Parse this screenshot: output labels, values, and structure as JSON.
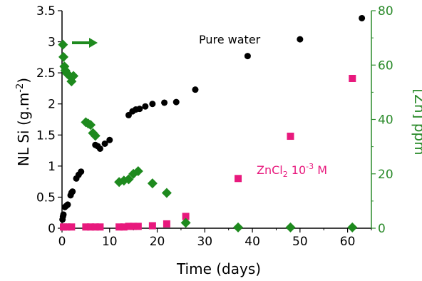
{
  "chart_data": {
    "type": "scatter",
    "xlabel": "Time (days)",
    "ylabel": {
      "base": "NL Si (g.m",
      "sup": "-2",
      "tail": ")"
    },
    "y2label": "[Zn] ppm",
    "xlim": [
      0,
      65
    ],
    "ylim": [
      0,
      3.5
    ],
    "y2lim": [
      0,
      80
    ],
    "xticks": [
      0,
      10,
      20,
      30,
      40,
      50,
      60
    ],
    "yticks": [
      0,
      0.5,
      1,
      1.5,
      2,
      2.5,
      3,
      3.5
    ],
    "y2ticks": [
      0,
      20,
      40,
      60,
      80
    ],
    "colors": {
      "pure_water": "#000000",
      "zncl2": "#e8197d",
      "zn": "#1e8a1e",
      "right_axis": "#2a8a2a"
    },
    "annotations": {
      "pure_water": "Pure water",
      "zncl2": {
        "base": "ZnCl",
        "sub": "2",
        "tail": " 10",
        "sup": "-3",
        "end": " M"
      }
    },
    "series": [
      {
        "key": "pure_water",
        "axis": "left",
        "marker": "circle",
        "x": [
          0.1,
          0.2,
          0.3,
          0.6,
          0.9,
          1.2,
          1.8,
          2.0,
          2.2,
          3.0,
          3.5,
          4.0,
          7.0,
          7.5,
          8.0,
          9.0,
          10.0,
          14.0,
          14.8,
          15.5,
          16.3,
          17.5,
          19.0,
          21.5,
          24.0,
          28.0,
          39.0,
          50.0,
          63.0
        ],
        "y": [
          0.14,
          0.19,
          0.22,
          0.34,
          0.36,
          0.38,
          0.53,
          0.57,
          0.59,
          0.8,
          0.86,
          0.91,
          1.34,
          1.32,
          1.28,
          1.36,
          1.42,
          1.82,
          1.88,
          1.91,
          1.92,
          1.96,
          2.0,
          2.02,
          2.03,
          2.23,
          2.77,
          3.04,
          3.38
        ]
      },
      {
        "key": "zncl2",
        "axis": "left",
        "marker": "square",
        "x": [
          0.3,
          1.0,
          2.0,
          5.0,
          6.0,
          7.0,
          8.0,
          12.0,
          13.0,
          14.0,
          15.0,
          16.0,
          19.0,
          22.0,
          26.0,
          37.0,
          48.0,
          61.0
        ],
        "y": [
          0.02,
          0.02,
          0.02,
          0.02,
          0.02,
          0.02,
          0.02,
          0.02,
          0.02,
          0.03,
          0.03,
          0.03,
          0.04,
          0.07,
          0.19,
          0.8,
          1.48,
          2.41
        ]
      },
      {
        "key": "zn",
        "axis": "right",
        "marker": "diamond",
        "x": [
          0.2,
          0.3,
          0.5,
          0.7,
          1.0,
          1.3,
          1.6,
          2.0,
          2.4,
          5.0,
          5.5,
          6.0,
          6.5,
          7.0,
          12.0,
          13.0,
          14.0,
          15.0,
          16.0,
          19.0,
          22.0,
          26.0,
          37.0,
          48.0,
          61.0
        ],
        "y": [
          67.5,
          63.0,
          59.5,
          58.0,
          57.0,
          56.5,
          56.0,
          54.0,
          56.0,
          39.0,
          38.5,
          38.0,
          35.0,
          34.0,
          17.0,
          17.5,
          18.0,
          20.0,
          21.0,
          16.5,
          13.0,
          2.0,
          0.3,
          0.3,
          0.3
        ]
      }
    ]
  }
}
